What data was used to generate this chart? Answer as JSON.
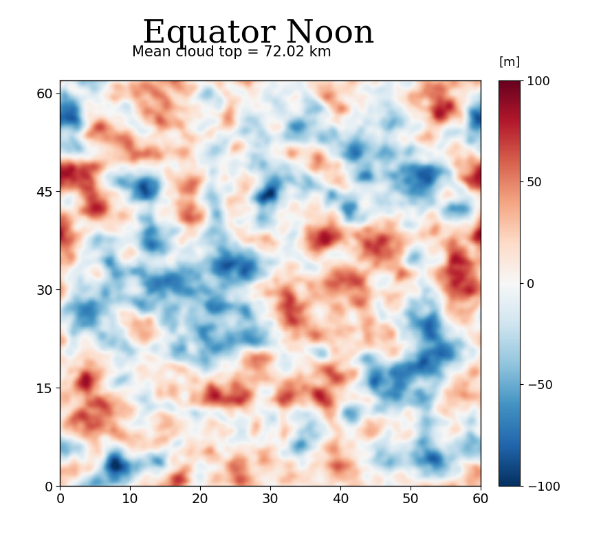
{
  "title": "Equator Noon",
  "subtitle": "Mean cloud top = 72.02 km",
  "colorbar_label": "[m]",
  "vmin": -100,
  "vmax": 100,
  "xlim": [
    0,
    60
  ],
  "ylim": [
    0,
    62
  ],
  "xticks": [
    0,
    10,
    20,
    30,
    40,
    50,
    60
  ],
  "yticks": [
    0,
    15,
    30,
    45,
    60
  ],
  "title_fontsize": 34,
  "subtitle_fontsize": 15,
  "tick_fontsize": 14,
  "colorbar_tick_fontsize": 13,
  "colorbar_ticks": [
    -100,
    -50,
    0,
    50,
    100
  ],
  "seed": 42,
  "grid_size": 256,
  "background_color": "#ffffff"
}
